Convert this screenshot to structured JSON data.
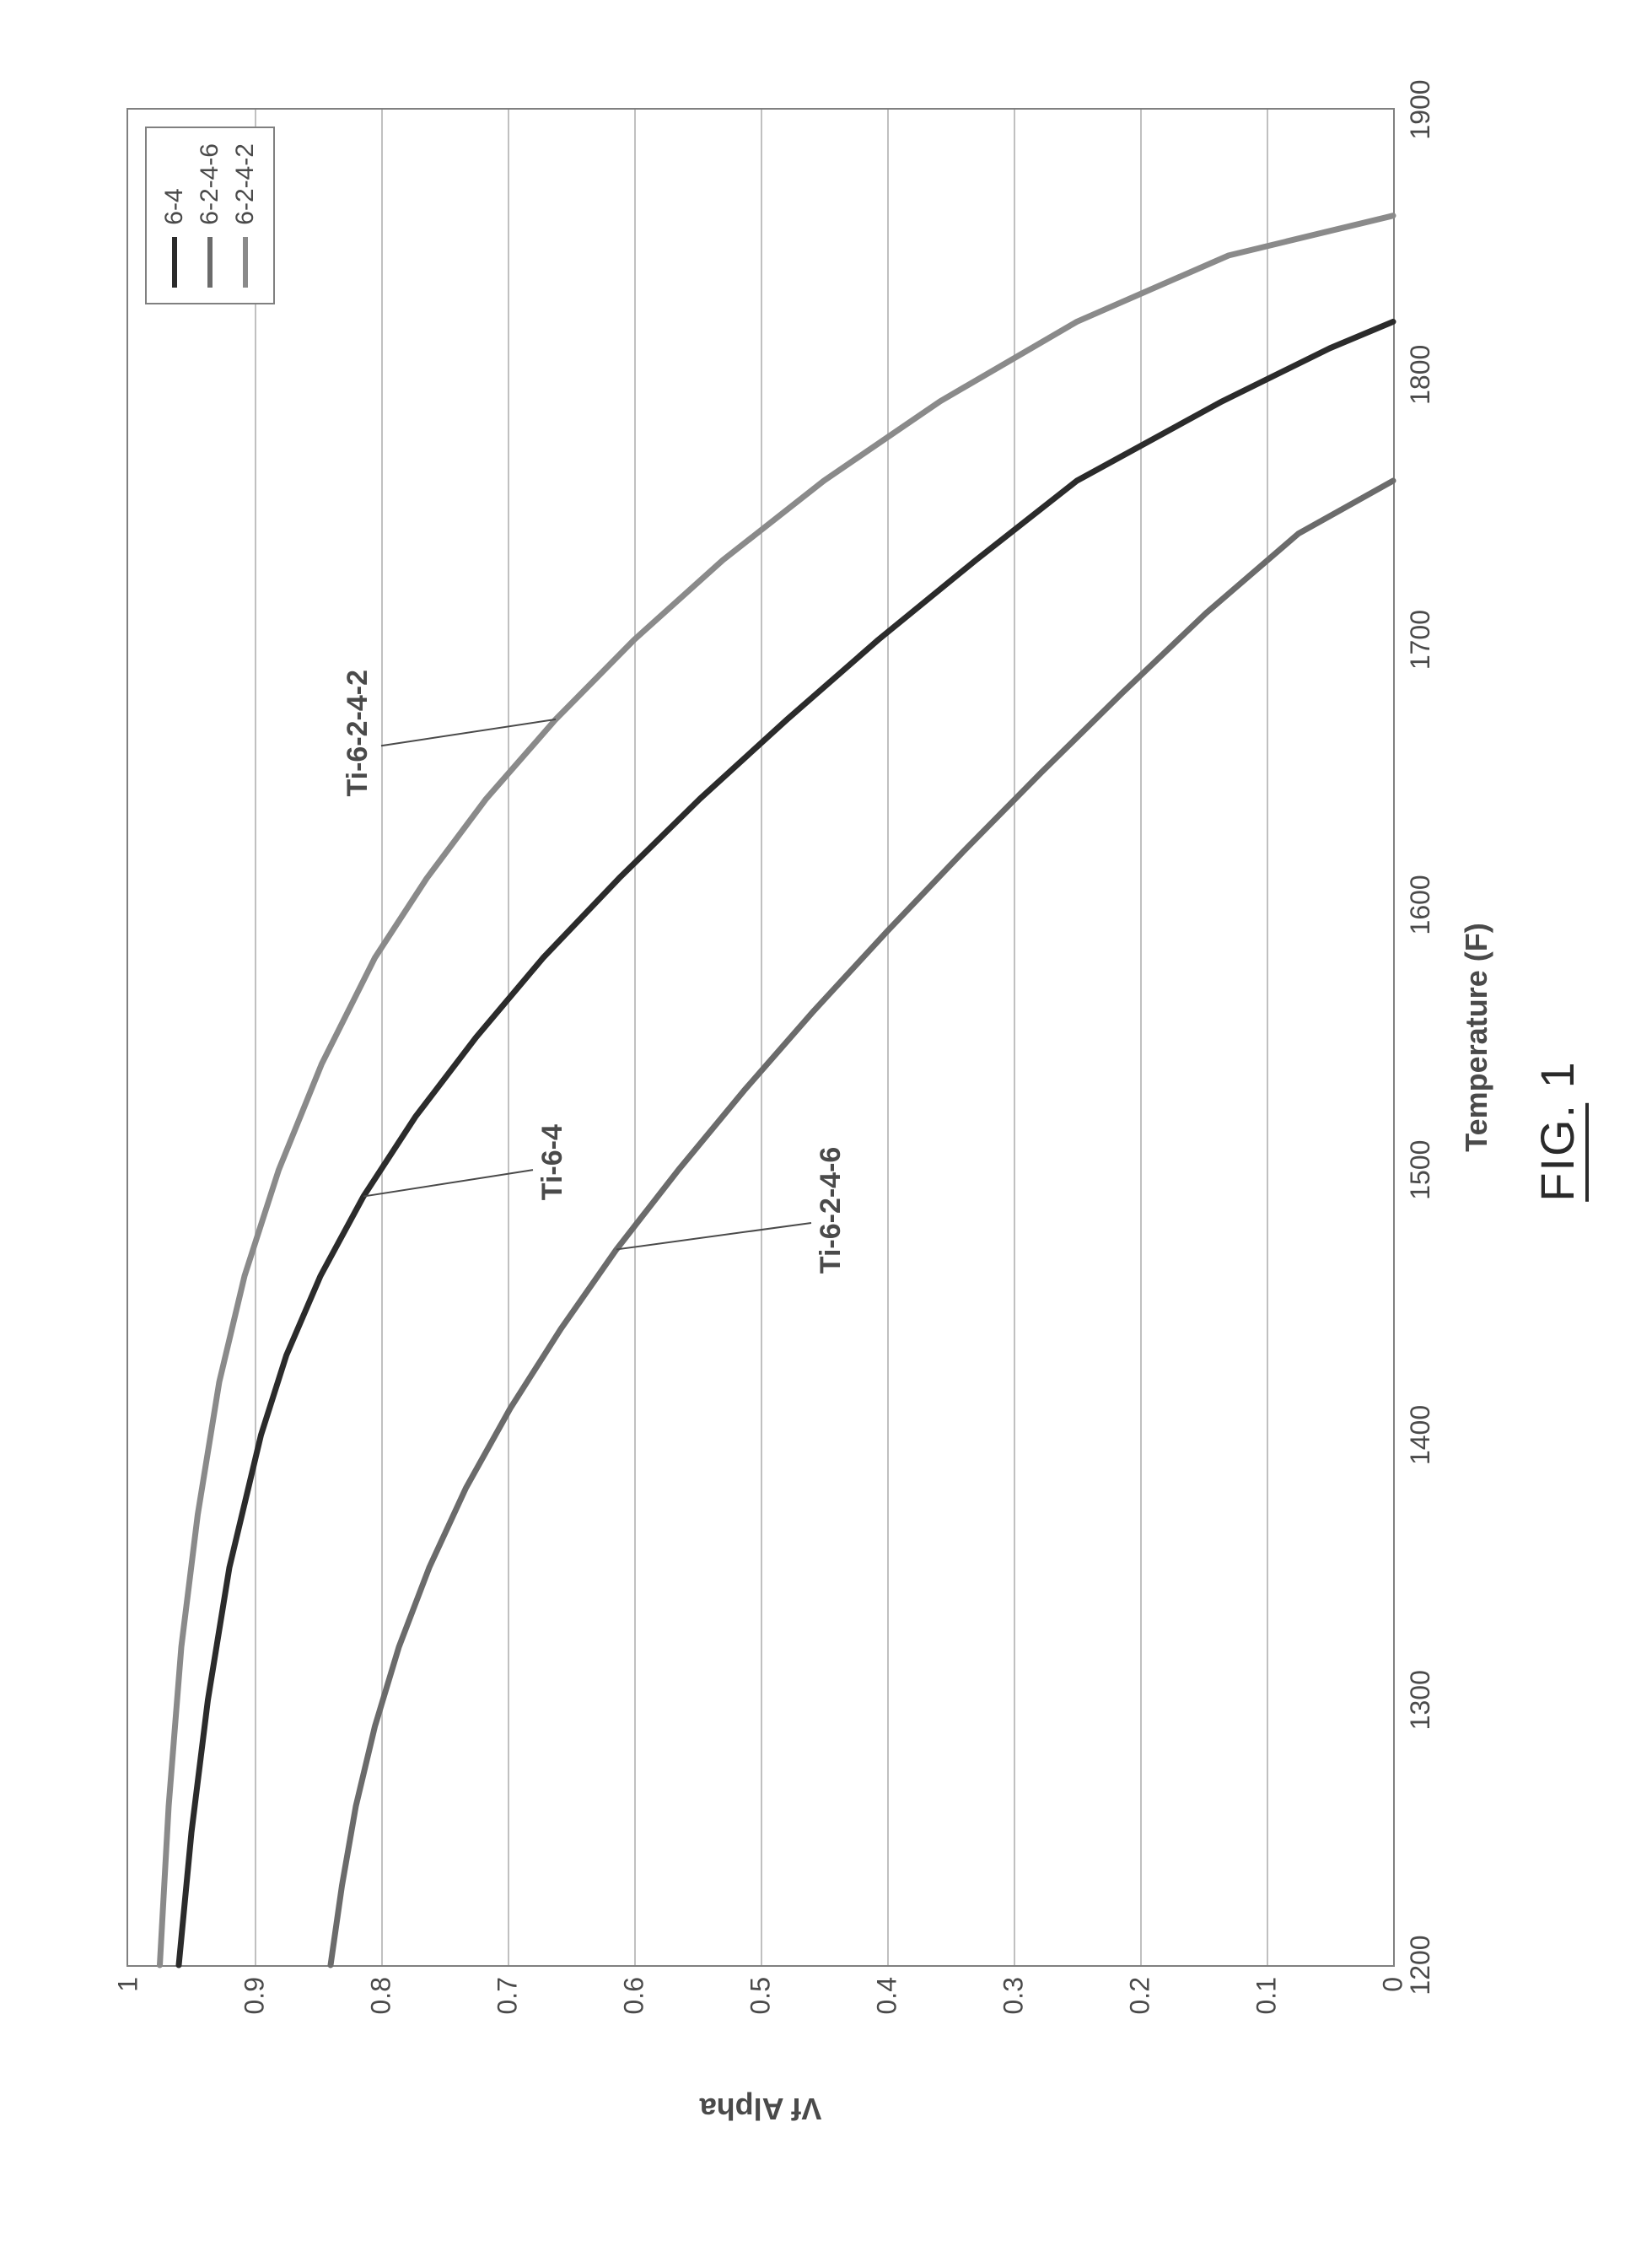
{
  "caption_prefix": "FIG.",
  "caption_number": "1",
  "chart": {
    "type": "line",
    "xlabel": "Temperature (F)",
    "ylabel": "Vf Alpha",
    "xlim": [
      1200,
      1900
    ],
    "ylim": [
      0,
      1
    ],
    "xtick_step": 100,
    "ytick_step": 0.1,
    "xticks": [
      1200,
      1300,
      1400,
      1500,
      1600,
      1700,
      1800,
      1900
    ],
    "yticks": [
      0,
      0.1,
      0.2,
      0.3,
      0.4,
      0.5,
      0.6,
      0.7,
      0.8,
      0.9,
      1
    ],
    "background_color": "#ffffff",
    "grid_color": "#c0c0c0",
    "axis_color": "#808080",
    "tick_fontsize": 32,
    "label_fontsize": 36,
    "label_fontweight": "bold",
    "legend": {
      "position": "top-right",
      "items": [
        {
          "label": "6-4",
          "color": "#2b2b2b"
        },
        {
          "label": "6-2-4-6",
          "color": "#6b6b6b"
        },
        {
          "label": "6-2-4-2",
          "color": "#8a8a8a"
        }
      ]
    },
    "series": [
      {
        "name": "Ti-6-4",
        "legend_key": "6-4",
        "color": "#2b2b2b",
        "line_width": 7,
        "annotation_xy": [
          1500,
          0.68
        ],
        "x": [
          1200,
          1250,
          1300,
          1350,
          1400,
          1430,
          1460,
          1490,
          1520,
          1550,
          1580,
          1610,
          1640,
          1670,
          1700,
          1730,
          1760,
          1790,
          1810,
          1820
        ],
        "y": [
          0.96,
          0.95,
          0.937,
          0.92,
          0.895,
          0.875,
          0.848,
          0.814,
          0.773,
          0.725,
          0.672,
          0.612,
          0.548,
          0.479,
          0.407,
          0.33,
          0.25,
          0.135,
          0.05,
          0.0
        ]
      },
      {
        "name": "Ti-6-2-4-6",
        "legend_key": "6-2-4-6",
        "color": "#6b6b6b",
        "line_width": 7,
        "annotation_xy": [
          1480,
          0.46
        ],
        "x": [
          1200,
          1230,
          1260,
          1290,
          1320,
          1350,
          1380,
          1410,
          1440,
          1470,
          1500,
          1530,
          1560,
          1590,
          1620,
          1650,
          1680,
          1710,
          1740,
          1760
        ],
        "y": [
          0.84,
          0.831,
          0.82,
          0.805,
          0.786,
          0.762,
          0.733,
          0.698,
          0.658,
          0.614,
          0.565,
          0.513,
          0.458,
          0.4,
          0.34,
          0.278,
          0.214,
          0.148,
          0.075,
          0.0
        ]
      },
      {
        "name": "Ti-6-2-4-2",
        "legend_key": "6-2-4-2",
        "color": "#8a8a8a",
        "line_width": 7,
        "annotation_xy": [
          1660,
          0.8
        ],
        "x": [
          1200,
          1260,
          1320,
          1370,
          1420,
          1460,
          1500,
          1540,
          1580,
          1610,
          1640,
          1670,
          1700,
          1730,
          1760,
          1790,
          1820,
          1845,
          1860
        ],
        "y": [
          0.975,
          0.968,
          0.958,
          0.945,
          0.928,
          0.908,
          0.881,
          0.847,
          0.805,
          0.764,
          0.717,
          0.662,
          0.6,
          0.53,
          0.45,
          0.358,
          0.25,
          0.13,
          0.0
        ]
      }
    ]
  }
}
